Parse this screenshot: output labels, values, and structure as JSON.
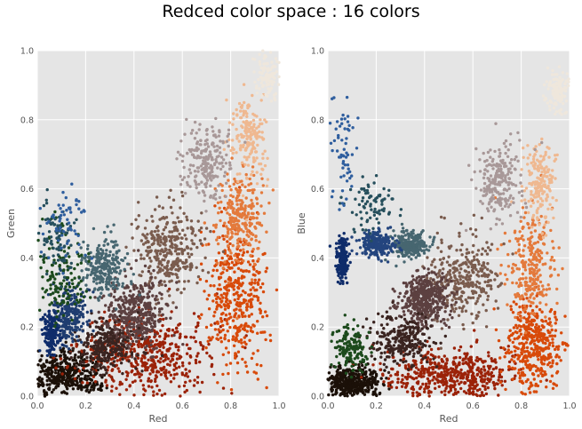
{
  "figure": {
    "suptitle": "Redced color space : 16 colors"
  },
  "chart_data": [
    {
      "type": "scatter",
      "xlabel": "Red",
      "ylabel": "Green",
      "xlim": [
        0.0,
        1.0
      ],
      "ylim": [
        0.0,
        1.0
      ],
      "xticks": [
        "0.0",
        "0.2",
        "0.4",
        "0.6",
        "0.8",
        "1.0"
      ],
      "yticks": [
        "0.0",
        "0.2",
        "0.4",
        "0.6",
        "0.8",
        "1.0"
      ],
      "grid": true,
      "background": "#e5e5e5",
      "series": [
        {
          "color": "#1b1008",
          "count": 420,
          "center": [
            0.12,
            0.06
          ],
          "spread": [
            0.12,
            0.06
          ]
        },
        {
          "color": "#9b2208",
          "count": 520,
          "center": [
            0.45,
            0.12
          ],
          "spread": [
            0.22,
            0.1
          ]
        },
        {
          "color": "#d84a0a",
          "count": 420,
          "center": [
            0.82,
            0.3
          ],
          "spread": [
            0.1,
            0.18
          ]
        },
        {
          "color": "#e47a3c",
          "count": 260,
          "center": [
            0.84,
            0.52
          ],
          "spread": [
            0.08,
            0.12
          ]
        },
        {
          "color": "#efb890",
          "count": 180,
          "center": [
            0.88,
            0.75
          ],
          "spread": [
            0.06,
            0.1
          ]
        },
        {
          "color": "#efe7dc",
          "count": 110,
          "center": [
            0.95,
            0.93
          ],
          "spread": [
            0.04,
            0.05
          ]
        },
        {
          "color": "#a89898",
          "count": 220,
          "center": [
            0.7,
            0.68
          ],
          "spread": [
            0.08,
            0.09
          ]
        },
        {
          "color": "#7a5c4e",
          "count": 320,
          "center": [
            0.55,
            0.42
          ],
          "spread": [
            0.12,
            0.1
          ]
        },
        {
          "color": "#5c4040",
          "count": 420,
          "center": [
            0.4,
            0.24
          ],
          "spread": [
            0.1,
            0.08
          ]
        },
        {
          "color": "#3a2420",
          "count": 260,
          "center": [
            0.28,
            0.14
          ],
          "spread": [
            0.1,
            0.06
          ]
        },
        {
          "color": "#476670",
          "count": 240,
          "center": [
            0.28,
            0.37
          ],
          "spread": [
            0.07,
            0.07
          ]
        },
        {
          "color": "#1f3d70",
          "count": 230,
          "center": [
            0.13,
            0.24
          ],
          "spread": [
            0.06,
            0.07
          ]
        },
        {
          "color": "#0f2c6a",
          "count": 170,
          "center": [
            0.06,
            0.18
          ],
          "spread": [
            0.03,
            0.05
          ]
        },
        {
          "color": "#1c4a1c",
          "count": 140,
          "center": [
            0.1,
            0.36
          ],
          "spread": [
            0.08,
            0.12
          ]
        },
        {
          "color": "#264f5c",
          "count": 80,
          "center": [
            0.08,
            0.45
          ],
          "spread": [
            0.06,
            0.1
          ]
        },
        {
          "color": "#2f5e9e",
          "count": 60,
          "center": [
            0.12,
            0.5
          ],
          "spread": [
            0.08,
            0.1
          ]
        }
      ]
    },
    {
      "type": "scatter",
      "xlabel": "Red",
      "ylabel": "Blue",
      "xlim": [
        0.0,
        1.0
      ],
      "ylim": [
        0.0,
        1.0
      ],
      "xticks": [
        "0.0",
        "0.2",
        "0.4",
        "0.6",
        "0.8",
        "1.0"
      ],
      "yticks": [
        "0.0",
        "0.2",
        "0.4",
        "0.6",
        "0.8",
        "1.0"
      ],
      "grid": true,
      "background": "#e5e5e5",
      "series": [
        {
          "color": "#1b1008",
          "count": 420,
          "center": [
            0.1,
            0.04
          ],
          "spread": [
            0.1,
            0.04
          ]
        },
        {
          "color": "#9b2208",
          "count": 520,
          "center": [
            0.5,
            0.06
          ],
          "spread": [
            0.22,
            0.06
          ]
        },
        {
          "color": "#d84a0a",
          "count": 420,
          "center": [
            0.85,
            0.15
          ],
          "spread": [
            0.1,
            0.12
          ]
        },
        {
          "color": "#e47a3c",
          "count": 260,
          "center": [
            0.84,
            0.38
          ],
          "spread": [
            0.08,
            0.12
          ]
        },
        {
          "color": "#efb890",
          "count": 180,
          "center": [
            0.88,
            0.62
          ],
          "spread": [
            0.06,
            0.1
          ]
        },
        {
          "color": "#efe7dc",
          "count": 110,
          "center": [
            0.95,
            0.88
          ],
          "spread": [
            0.04,
            0.06
          ]
        },
        {
          "color": "#a89898",
          "count": 220,
          "center": [
            0.7,
            0.62
          ],
          "spread": [
            0.08,
            0.09
          ]
        },
        {
          "color": "#7a5c4e",
          "count": 320,
          "center": [
            0.55,
            0.34
          ],
          "spread": [
            0.12,
            0.1
          ]
        },
        {
          "color": "#5c4040",
          "count": 420,
          "center": [
            0.4,
            0.28
          ],
          "spread": [
            0.08,
            0.06
          ]
        },
        {
          "color": "#3a2420",
          "count": 260,
          "center": [
            0.3,
            0.16
          ],
          "spread": [
            0.1,
            0.06
          ]
        },
        {
          "color": "#476670",
          "count": 240,
          "center": [
            0.34,
            0.44
          ],
          "spread": [
            0.06,
            0.03
          ]
        },
        {
          "color": "#24457e",
          "count": 230,
          "center": [
            0.2,
            0.44
          ],
          "spread": [
            0.06,
            0.03
          ]
        },
        {
          "color": "#0f2c6a",
          "count": 200,
          "center": [
            0.06,
            0.4
          ],
          "spread": [
            0.02,
            0.05
          ]
        },
        {
          "color": "#1c4a1c",
          "count": 140,
          "center": [
            0.1,
            0.14
          ],
          "spread": [
            0.06,
            0.06
          ]
        },
        {
          "color": "#264f5c",
          "count": 80,
          "center": [
            0.18,
            0.55
          ],
          "spread": [
            0.08,
            0.06
          ]
        },
        {
          "color": "#2f5e9e",
          "count": 60,
          "center": [
            0.06,
            0.7
          ],
          "spread": [
            0.04,
            0.12
          ]
        }
      ]
    }
  ]
}
